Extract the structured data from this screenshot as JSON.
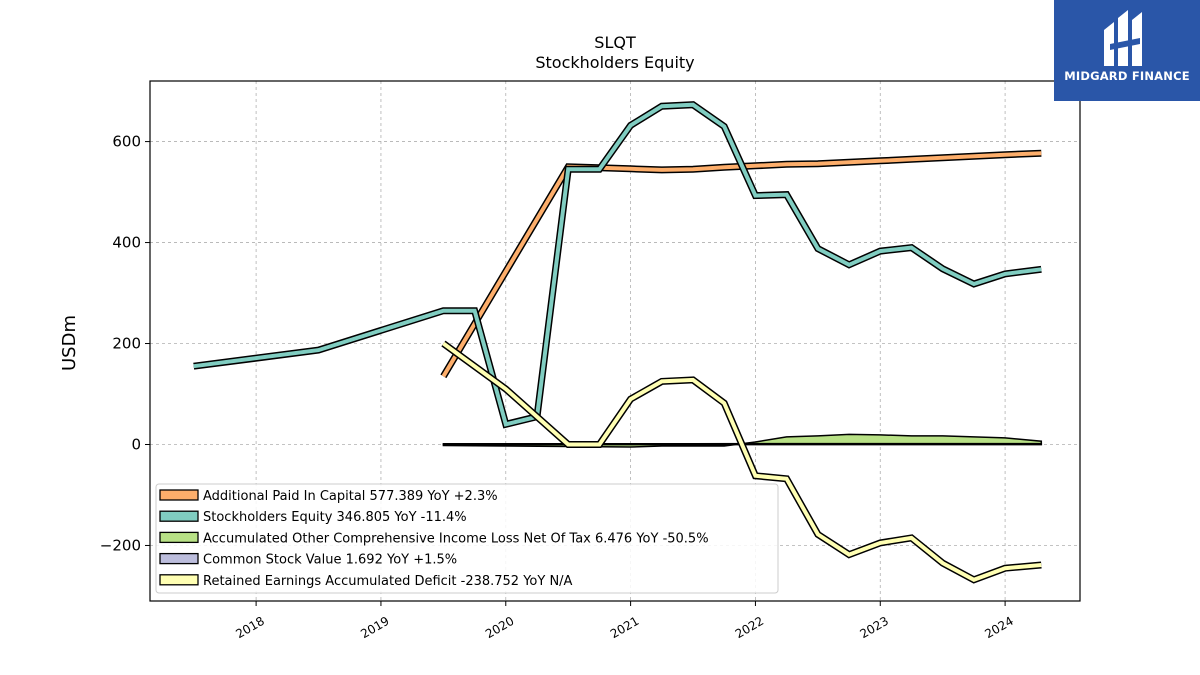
{
  "logo": {
    "brand": "MIDGARD FINANCE",
    "icon": "midgard-mark-icon",
    "background": "#2a56a8"
  },
  "chart_data": {
    "type": "line",
    "title": "SLQT",
    "subtitle": "Stockholders  Equity",
    "ylabel": "USDm",
    "xlabel": "",
    "ylim": [
      -310,
      720
    ],
    "xlim": [
      2017.15,
      2024.6
    ],
    "x_ticks": [
      {
        "value": 2018,
        "label": "2018"
      },
      {
        "value": 2019,
        "label": "2019"
      },
      {
        "value": 2020,
        "label": "2020"
      },
      {
        "value": 2021,
        "label": "2021"
      },
      {
        "value": 2022,
        "label": "2022"
      },
      {
        "value": 2023,
        "label": "2023"
      },
      {
        "value": 2024,
        "label": "2024"
      }
    ],
    "y_ticks": [
      {
        "value": -200,
        "label": "−200"
      },
      {
        "value": 0,
        "label": "0"
      },
      {
        "value": 200,
        "label": "200"
      },
      {
        "value": 400,
        "label": "400"
      },
      {
        "value": 600,
        "label": "600"
      }
    ],
    "grid": true,
    "legend_position": "lower-left",
    "series": [
      {
        "name": "Additional Paid In Capital  577.389 YoY +2.3%",
        "color": "#fdae6b",
        "x": [
          2019.5,
          2020.5,
          2020.75,
          2021.0,
          2021.25,
          2021.5,
          2021.75,
          2022.0,
          2022.25,
          2022.5,
          2022.75,
          2023.0,
          2023.25,
          2023.5,
          2023.75,
          2024.0,
          2024.29
        ],
        "y": [
          135,
          550,
          548,
          546,
          544,
          545,
          549,
          552,
          555,
          556,
          559,
          562,
          565,
          568,
          571,
          574,
          577
        ]
      },
      {
        "name": "Stockholders Equity  346.805 YoY -11.4%",
        "color": "#80cdc1",
        "x": [
          2017.5,
          2018.5,
          2019.5,
          2019.75,
          2020.0,
          2020.25,
          2020.5,
          2020.75,
          2021.0,
          2021.25,
          2021.5,
          2021.75,
          2022.0,
          2022.25,
          2022.5,
          2022.75,
          2023.0,
          2023.25,
          2023.5,
          2023.75,
          2024.0,
          2024.29
        ],
        "y": [
          155,
          187,
          265,
          265,
          40,
          55,
          545,
          545,
          632,
          670,
          673,
          630,
          493,
          495,
          388,
          356,
          383,
          390,
          348,
          318,
          338,
          347
        ]
      },
      {
        "name": "Accumulated Other Comprehensive Income Loss Net Of Tax  6.476 YoY -50.5%",
        "color": "#b8e186",
        "fill": true,
        "x": [
          2019.5,
          2020.0,
          2020.5,
          2021.0,
          2021.25,
          2021.75,
          2022.0,
          2022.25,
          2022.5,
          2022.75,
          2023.0,
          2023.25,
          2023.5,
          2023.75,
          2024.0,
          2024.29
        ],
        "y": [
          -2,
          -3,
          -4,
          -5,
          -3,
          -3,
          5,
          15,
          17,
          20,
          19,
          17,
          17,
          15,
          13,
          6.5
        ]
      },
      {
        "name": "Common Stock Value  1.692 YoY +1.5%",
        "color": "#bcbddc",
        "fill": true,
        "x": [
          2019.5,
          2020.0,
          2020.5,
          2021.0,
          2021.5,
          2022.0,
          2022.5,
          2023.0,
          2023.5,
          2024.0,
          2024.29
        ],
        "y": [
          1.5,
          1.5,
          1.6,
          1.6,
          1.6,
          1.7,
          1.7,
          1.7,
          1.7,
          1.7,
          1.7
        ]
      },
      {
        "name": "Retained Earnings Accumulated Deficit  -238.752 YoY N/A",
        "color": "#ffffb3",
        "x": [
          2019.5,
          2020.0,
          2020.5,
          2020.75,
          2021.0,
          2021.25,
          2021.5,
          2021.75,
          2022.0,
          2022.25,
          2022.5,
          2022.75,
          2023.0,
          2023.25,
          2023.5,
          2023.75,
          2024.0,
          2024.29
        ],
        "y": [
          200,
          110,
          0,
          0,
          90,
          125,
          128,
          82,
          -62,
          -68,
          -178,
          -218,
          -195,
          -185,
          -235,
          -268,
          -245,
          -238.752
        ]
      }
    ]
  }
}
